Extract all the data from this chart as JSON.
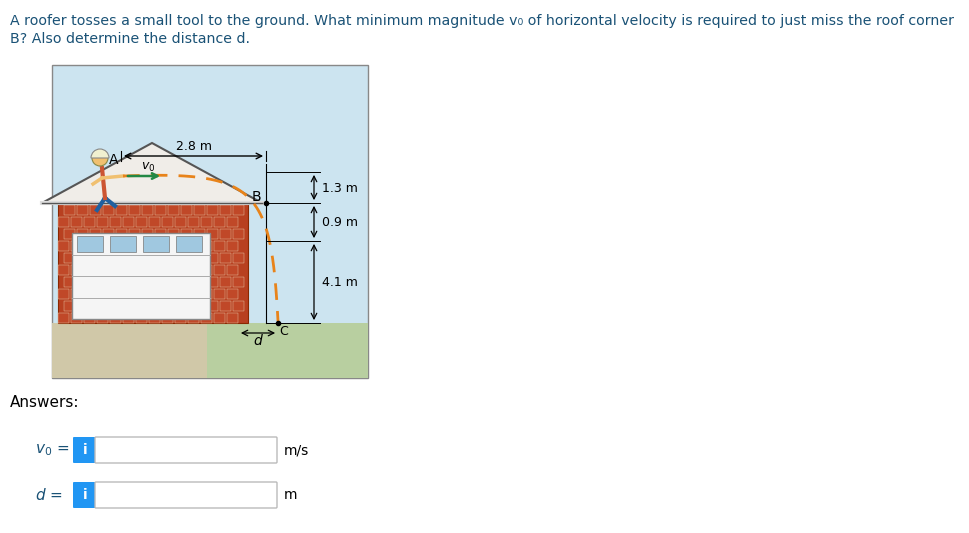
{
  "title_line1": "A roofer tosses a small tool to the ground. What minimum magnitude v₀ of horizontal velocity is required to just miss the roof corner",
  "title_line2": "B? Also determine the distance d.",
  "background_color": "#ffffff",
  "diagram_bg": "#cce4f0",
  "answer_label_v0": "v₀ =",
  "answer_label_d": "d =",
  "unit_v0": "m/s",
  "unit_d": "m",
  "dim_28": "2.8 m",
  "dim_13": "1.3 m",
  "dim_09": "0.9 m",
  "dim_41": "4.1 m",
  "label_A": "A",
  "label_B": "B",
  "label_C": "C",
  "label_v0": "v₀",
  "label_d": "d",
  "answers_label": "Answers:",
  "blue_btn": "#2196f3",
  "title_color": "#1a5276",
  "text_color_dark": "#2c3e50"
}
